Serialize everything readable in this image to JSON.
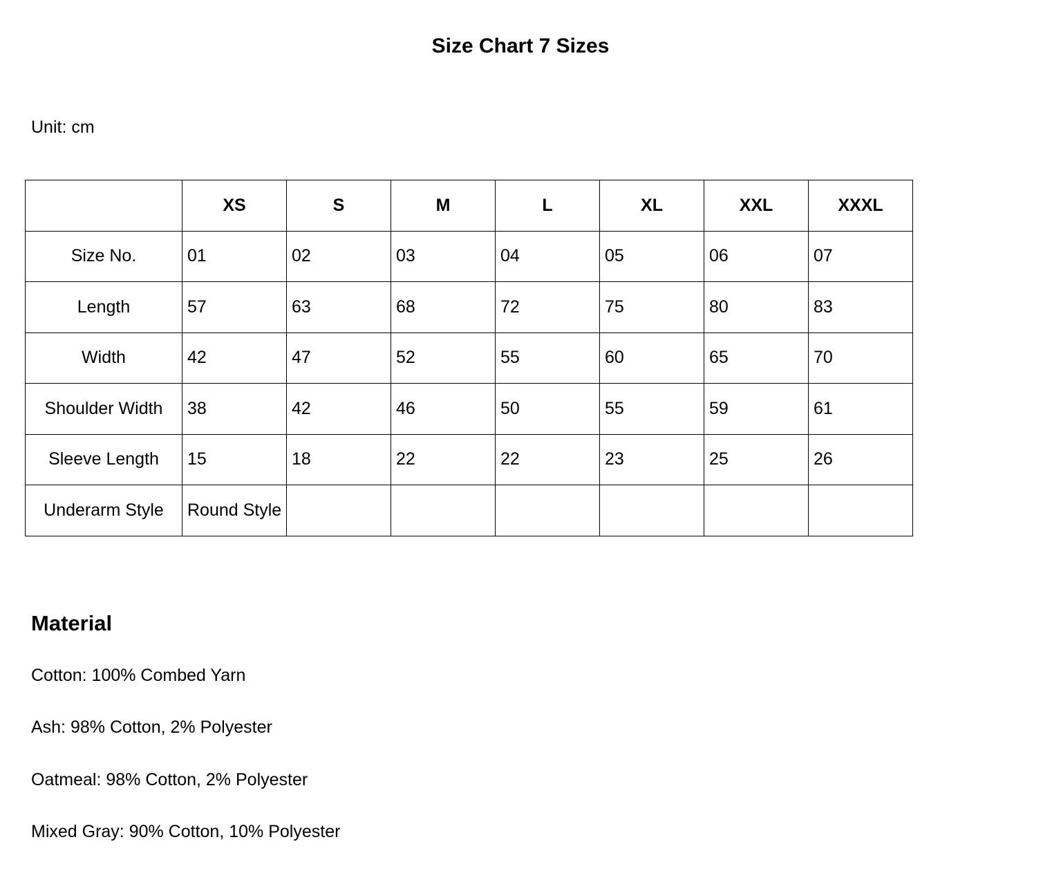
{
  "title": "Size Chart 7 Sizes",
  "unit": "Unit: cm",
  "table": {
    "headers": [
      "",
      "XS",
      "S",
      "M",
      "L",
      "XL",
      "XXL",
      "XXXL"
    ],
    "rows": [
      {
        "label": "Size No.",
        "values": [
          "01",
          "02",
          "03",
          "04",
          "05",
          "06",
          "07"
        ]
      },
      {
        "label": "Length",
        "values": [
          "57",
          "63",
          "68",
          "72",
          "75",
          "80",
          "83"
        ]
      },
      {
        "label": "Width",
        "values": [
          "42",
          "47",
          "52",
          "55",
          "60",
          "65",
          "70"
        ]
      },
      {
        "label": "Shoulder Width",
        "values": [
          "38",
          "42",
          "46",
          "50",
          "55",
          "59",
          "61"
        ]
      },
      {
        "label": "Sleeve Length",
        "values": [
          "15",
          "18",
          "22",
          "22",
          "23",
          "25",
          "26"
        ]
      },
      {
        "label": "Underarm Style",
        "values": [
          "Round Style",
          "",
          "",
          "",
          "",
          "",
          ""
        ]
      }
    ]
  },
  "material": {
    "title": "Material",
    "lines": [
      "Cotton: 100% Combed Yarn",
      "Ash: 98% Cotton, 2% Polyester",
      "Oatmeal: 98% Cotton, 2% Polyester",
      "Mixed Gray: 90% Cotton, 10% Polyester"
    ]
  }
}
